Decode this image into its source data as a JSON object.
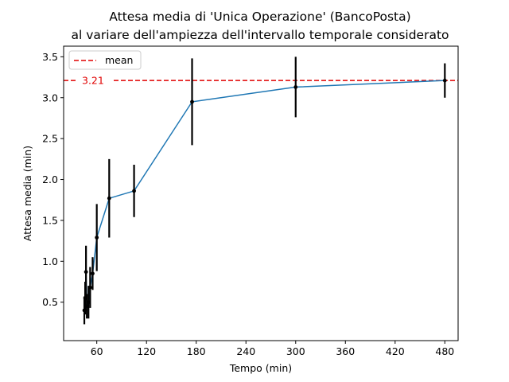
{
  "chart_data": {
    "type": "line",
    "title": "Attesa media di 'Unica Operazione' (BancoPosta)",
    "subtitle": "al variare dell'ampiezza dell'intervallo temporale considerato",
    "xlabel": "Tempo (min)",
    "ylabel": "Attesa media (min)",
    "xlim": [
      20,
      496
    ],
    "ylim": [
      0.03,
      3.63
    ],
    "xticks": [
      60,
      120,
      180,
      240,
      300,
      360,
      420,
      480
    ],
    "yticks": [
      0.5,
      1.0,
      1.5,
      2.0,
      2.5,
      3.0,
      3.5
    ],
    "grid": false,
    "legend": {
      "placement": "top-left",
      "entries": [
        "mean"
      ]
    },
    "series": [
      {
        "color": "#1f77b4",
        "x": [
          45,
          46,
          47,
          48,
          50,
          52,
          55,
          60,
          75,
          105,
          175,
          300,
          480
        ],
        "y": [
          0.4,
          0.55,
          0.87,
          0.45,
          0.5,
          0.68,
          0.85,
          1.29,
          1.77,
          1.86,
          2.95,
          3.13,
          3.21
        ],
        "yerr": [
          0.17,
          0.2,
          0.32,
          0.15,
          0.2,
          0.25,
          0.2,
          0.41,
          0.48,
          0.32,
          0.53,
          0.37,
          0.21
        ]
      }
    ],
    "mean_line": {
      "value": 3.21,
      "label": "3.21",
      "legend": "mean",
      "color": "#e00000"
    },
    "errorbar_color": "#000000"
  }
}
